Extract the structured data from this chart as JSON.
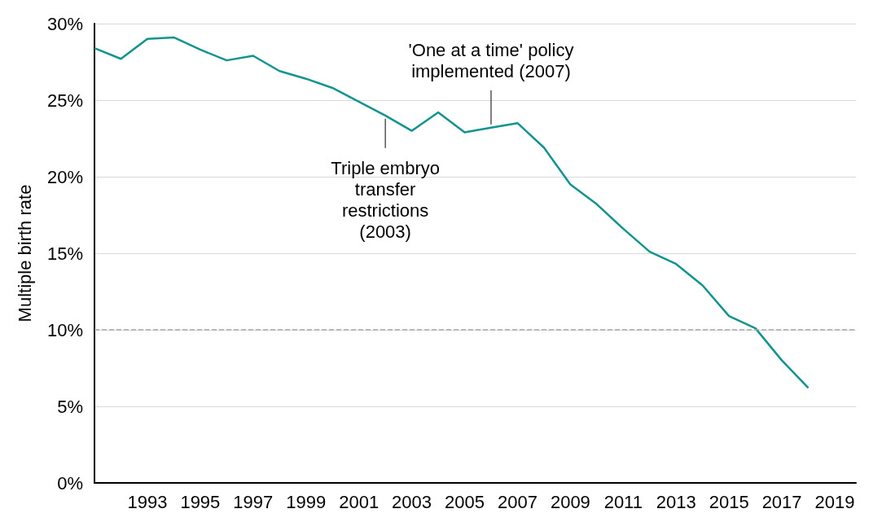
{
  "chart_data": {
    "type": "line",
    "ylabel": "Multiple birth rate",
    "x": [
      1991,
      1992,
      1993,
      1994,
      1995,
      1996,
      1997,
      1998,
      1999,
      2000,
      2001,
      2002,
      2003,
      2004,
      2005,
      2006,
      2007,
      2008,
      2009,
      2010,
      2011,
      2012,
      2013,
      2014,
      2015,
      2016,
      2017,
      2018
    ],
    "series": [
      {
        "color": "#11938f",
        "values": [
          28.4,
          27.7,
          29.0,
          29.1,
          28.3,
          27.6,
          27.9,
          26.9,
          26.4,
          25.8,
          24.9,
          24.0,
          23.0,
          24.2,
          22.9,
          23.2,
          23.5,
          21.9,
          19.5,
          18.2,
          16.6,
          15.1,
          14.3,
          12.9,
          10.9,
          10.1,
          8.0,
          6.2
        ]
      }
    ],
    "xlim": [
      1991,
      2019.8
    ],
    "xticks": [
      1993,
      1995,
      1997,
      1999,
      2001,
      2003,
      2005,
      2007,
      2009,
      2011,
      2013,
      2015,
      2017,
      2019
    ],
    "ylim": [
      0,
      30
    ],
    "yticks": [
      {
        "value": 0,
        "label": "0%"
      },
      {
        "value": 5,
        "label": "5%"
      },
      {
        "value": 10,
        "label": "10%"
      },
      {
        "value": 15,
        "label": "15%"
      },
      {
        "value": 20,
        "label": "20%"
      },
      {
        "value": 25,
        "label": "25%"
      },
      {
        "value": 30,
        "label": "30%"
      }
    ],
    "grid": "y",
    "marker": "none",
    "line_style": "solid",
    "ref_lines": [
      {
        "axis": "y",
        "value": 10,
        "color": "#a6a6a6",
        "line_style": "dashed"
      }
    ],
    "annotations": [
      {
        "text": "Triple embryo\ntransfer\nrestrictions\n(2003)",
        "x": 2002,
        "y": 24.0
      },
      {
        "text": "'One at a time' policy\nimplemented (2007)",
        "x": 2006,
        "y": 23.2
      }
    ]
  }
}
